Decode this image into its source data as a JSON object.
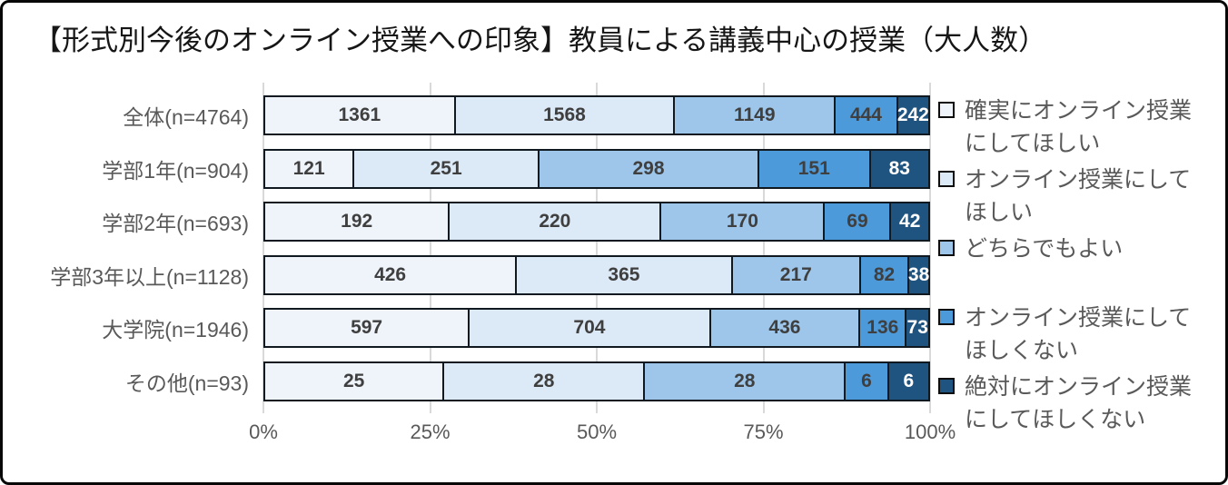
{
  "title": "【形式別今後のオンライン授業への印象】教員による講義中心の授業（大人数）",
  "chart_data": {
    "type": "bar",
    "orientation": "horizontal",
    "stacked": true,
    "value_mode": "percent-of-row-total",
    "title": "【形式別今後のオンライン授業への印象】教員による講義中心の授業（大人数）",
    "categories": [
      "全体(n=4764)",
      "学部1年(n=904)",
      "学部2年(n=693)",
      "学部3年以上(n=1128)",
      "大学院(n=1946)",
      "その他(n=93)"
    ],
    "series": [
      {
        "name": "確実にオンライン授業にしてほしい",
        "color": "#EEF4FA",
        "label_color": "#3F3F3F",
        "values": [
          1361,
          121,
          192,
          426,
          597,
          25
        ]
      },
      {
        "name": "オンライン授業にしてほしい",
        "color": "#DCE9F6",
        "label_color": "#3F3F3F",
        "values": [
          1568,
          251,
          220,
          365,
          704,
          28
        ]
      },
      {
        "name": "どちらでもよい",
        "color": "#9DC6EA",
        "label_color": "#3F3F3F",
        "values": [
          1149,
          298,
          170,
          217,
          436,
          28
        ]
      },
      {
        "name": "オンライン授業にしてほしくない",
        "color": "#4D9ADB",
        "label_color": "#3F3F3F",
        "values": [
          444,
          151,
          69,
          82,
          136,
          6
        ]
      },
      {
        "name": "絶対にオンライン授業にしてほしくない",
        "color": "#1F5380",
        "label_color": "#FFFFFF",
        "values": [
          242,
          83,
          42,
          38,
          73,
          6
        ]
      }
    ],
    "row_totals": [
      4764,
      904,
      693,
      1128,
      1946,
      93
    ],
    "x_ticks": [
      "0%",
      "25%",
      "50%",
      "75%",
      "100%"
    ],
    "xlim": [
      0,
      100
    ],
    "grid": true,
    "legend_position": "right"
  },
  "colors": {
    "grid": "#D9D9D9",
    "bar_border": "#101820",
    "axis_text": "#595959",
    "title_text": "#161616"
  }
}
